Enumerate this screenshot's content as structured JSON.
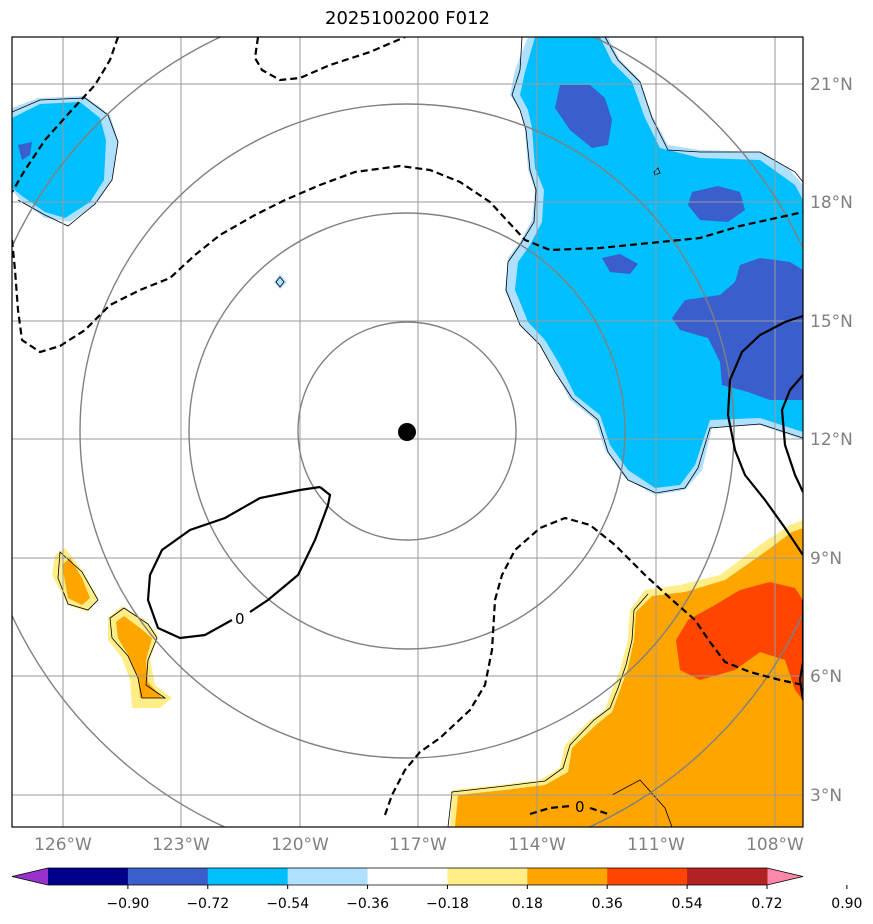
{
  "title": "2025100200 F012",
  "lat_labels": [
    "21°N",
    "18°N",
    "15°N",
    "12°N",
    "9°N",
    "6°N",
    "3°N"
  ],
  "lon_labels": [
    "126°W",
    "123°W",
    "120°W",
    "117°W",
    "114°W",
    "111°W",
    "108°W"
  ],
  "contour_labels": [
    "0",
    "0"
  ],
  "colorbar": {
    "tick_labels": [
      "−0.90",
      "−0.72",
      "−0.54",
      "−0.36",
      "−0.18",
      "0.18",
      "0.36",
      "0.54",
      "0.72",
      "0.90"
    ],
    "colors": [
      "#9932cc",
      "#00008b",
      "#3a5fcd",
      "#00bfff",
      "#b0e0ff",
      "#ffffff",
      "#ffee88",
      "#ffa500",
      "#ff4500",
      "#b22222",
      "#ff88aa"
    ]
  },
  "fill_colors": {
    "neg_light": "#b0e0ff",
    "neg_mid": "#00bfff",
    "neg_dark": "#3a5fcd",
    "pos_light": "#ffee88",
    "pos_mid": "#ffa500",
    "pos_dark": "#ff4500"
  },
  "center_marker": {
    "lat": 12.2,
    "lon": -117.3
  }
}
